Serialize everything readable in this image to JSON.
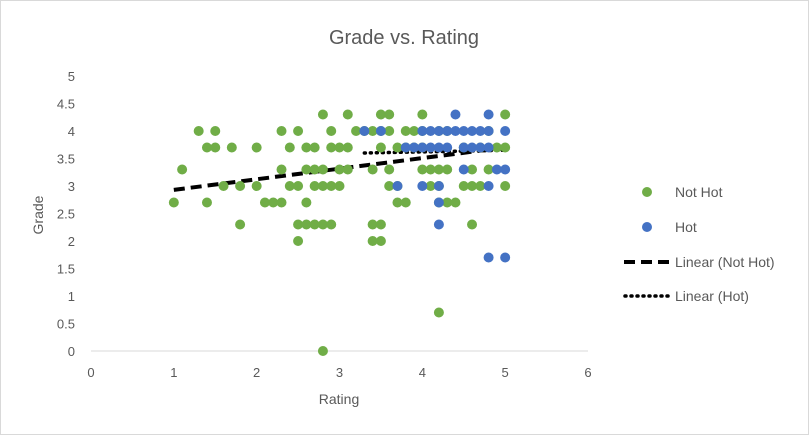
{
  "chart_data": {
    "type": "scatter",
    "title": "Grade vs. Rating",
    "xlabel": "Rating",
    "ylabel": "Grade",
    "xlim": [
      0,
      6
    ],
    "ylim": [
      0,
      5
    ],
    "x_ticks": [
      0,
      1,
      2,
      3,
      4,
      5,
      6
    ],
    "y_ticks": [
      0,
      0.5,
      1,
      1.5,
      2,
      2.5,
      3,
      3.5,
      4,
      4.5,
      5
    ],
    "grid": false,
    "legend_position": "right",
    "colors": {
      "not_hot": "#70ad47",
      "hot": "#4472c4",
      "trend": "#000000",
      "text": "#595959",
      "axis": "#d9d9d9"
    },
    "series": [
      {
        "name": "Not Hot",
        "kind": "scatter",
        "points": [
          [
            1.0,
            2.7
          ],
          [
            1.1,
            3.3
          ],
          [
            1.3,
            4.0
          ],
          [
            1.4,
            3.7
          ],
          [
            1.4,
            2.7
          ],
          [
            1.5,
            4.0
          ],
          [
            1.5,
            3.7
          ],
          [
            1.6,
            3.0
          ],
          [
            1.7,
            3.7
          ],
          [
            1.8,
            3.0
          ],
          [
            1.8,
            2.3
          ],
          [
            2.0,
            3.7
          ],
          [
            2.0,
            3.0
          ],
          [
            2.1,
            2.7
          ],
          [
            2.2,
            2.7
          ],
          [
            2.3,
            2.7
          ],
          [
            2.3,
            4.0
          ],
          [
            2.3,
            3.3
          ],
          [
            2.4,
            3.7
          ],
          [
            2.4,
            3.0
          ],
          [
            2.5,
            4.0
          ],
          [
            2.5,
            3.0
          ],
          [
            2.5,
            2.3
          ],
          [
            2.5,
            2.0
          ],
          [
            2.6,
            3.7
          ],
          [
            2.6,
            3.3
          ],
          [
            2.6,
            2.7
          ],
          [
            2.6,
            2.3
          ],
          [
            2.7,
            3.3
          ],
          [
            2.7,
            3.0
          ],
          [
            2.7,
            2.3
          ],
          [
            2.7,
            3.7
          ],
          [
            2.8,
            4.3
          ],
          [
            2.8,
            3.3
          ],
          [
            2.8,
            3.0
          ],
          [
            2.8,
            2.3
          ],
          [
            2.8,
            0.0
          ],
          [
            2.9,
            4.0
          ],
          [
            2.9,
            3.7
          ],
          [
            2.9,
            3.0
          ],
          [
            2.9,
            2.3
          ],
          [
            3.0,
            3.7
          ],
          [
            3.0,
            3.3
          ],
          [
            3.0,
            3.0
          ],
          [
            3.1,
            4.3
          ],
          [
            3.1,
            3.7
          ],
          [
            3.1,
            3.3
          ],
          [
            3.2,
            4.0
          ],
          [
            3.3,
            4.0
          ],
          [
            3.4,
            4.0
          ],
          [
            3.4,
            3.3
          ],
          [
            3.4,
            2.3
          ],
          [
            3.4,
            2.0
          ],
          [
            3.5,
            4.3
          ],
          [
            3.5,
            4.0
          ],
          [
            3.5,
            3.7
          ],
          [
            3.5,
            2.3
          ],
          [
            3.5,
            2.0
          ],
          [
            3.6,
            4.3
          ],
          [
            3.6,
            4.0
          ],
          [
            3.6,
            3.3
          ],
          [
            3.6,
            3.0
          ],
          [
            3.7,
            3.7
          ],
          [
            3.7,
            3.0
          ],
          [
            3.7,
            2.7
          ],
          [
            3.8,
            4.0
          ],
          [
            3.8,
            3.7
          ],
          [
            3.8,
            2.7
          ],
          [
            3.9,
            4.0
          ],
          [
            3.9,
            3.7
          ],
          [
            4.0,
            4.3
          ],
          [
            4.0,
            4.0
          ],
          [
            4.0,
            3.7
          ],
          [
            4.0,
            3.3
          ],
          [
            4.1,
            3.3
          ],
          [
            4.1,
            3.0
          ],
          [
            4.2,
            4.0
          ],
          [
            4.2,
            3.3
          ],
          [
            4.2,
            3.0
          ],
          [
            4.2,
            2.7
          ],
          [
            4.2,
            0.7
          ],
          [
            4.3,
            4.0
          ],
          [
            4.3,
            3.3
          ],
          [
            4.3,
            2.7
          ],
          [
            4.4,
            2.7
          ],
          [
            4.5,
            3.7
          ],
          [
            4.5,
            3.0
          ],
          [
            4.6,
            3.3
          ],
          [
            4.6,
            3.0
          ],
          [
            4.6,
            2.3
          ],
          [
            4.7,
            3.7
          ],
          [
            4.7,
            3.0
          ],
          [
            4.8,
            4.0
          ],
          [
            4.8,
            3.3
          ],
          [
            4.9,
            3.7
          ],
          [
            5.0,
            4.3
          ],
          [
            5.0,
            3.7
          ],
          [
            5.0,
            3.0
          ]
        ]
      },
      {
        "name": "Hot",
        "kind": "scatter",
        "points": [
          [
            3.3,
            4.0
          ],
          [
            3.5,
            4.0
          ],
          [
            3.7,
            3.0
          ],
          [
            3.8,
            3.7
          ],
          [
            3.9,
            3.7
          ],
          [
            4.0,
            4.0
          ],
          [
            4.0,
            3.7
          ],
          [
            4.0,
            3.0
          ],
          [
            4.1,
            4.0
          ],
          [
            4.1,
            3.7
          ],
          [
            4.2,
            4.0
          ],
          [
            4.2,
            3.7
          ],
          [
            4.2,
            3.0
          ],
          [
            4.2,
            2.7
          ],
          [
            4.2,
            2.3
          ],
          [
            4.3,
            4.0
          ],
          [
            4.3,
            3.7
          ],
          [
            4.4,
            4.3
          ],
          [
            4.4,
            4.0
          ],
          [
            4.5,
            4.0
          ],
          [
            4.5,
            3.7
          ],
          [
            4.5,
            3.3
          ],
          [
            4.6,
            4.0
          ],
          [
            4.6,
            3.7
          ],
          [
            4.7,
            4.0
          ],
          [
            4.7,
            3.7
          ],
          [
            4.8,
            4.3
          ],
          [
            4.8,
            4.0
          ],
          [
            4.8,
            3.7
          ],
          [
            4.8,
            3.0
          ],
          [
            4.8,
            1.7
          ],
          [
            4.9,
            3.3
          ],
          [
            5.0,
            4.0
          ],
          [
            5.0,
            3.3
          ],
          [
            5.0,
            1.7
          ]
        ]
      },
      {
        "name": "Linear  (Not Hot)",
        "kind": "trendline",
        "style": "dashed",
        "points": [
          [
            1.0,
            2.93
          ],
          [
            5.0,
            3.7
          ]
        ]
      },
      {
        "name": "Linear  (Hot)",
        "kind": "trendline",
        "style": "dotted",
        "points": [
          [
            3.3,
            3.6
          ],
          [
            5.0,
            3.65
          ]
        ]
      }
    ]
  }
}
